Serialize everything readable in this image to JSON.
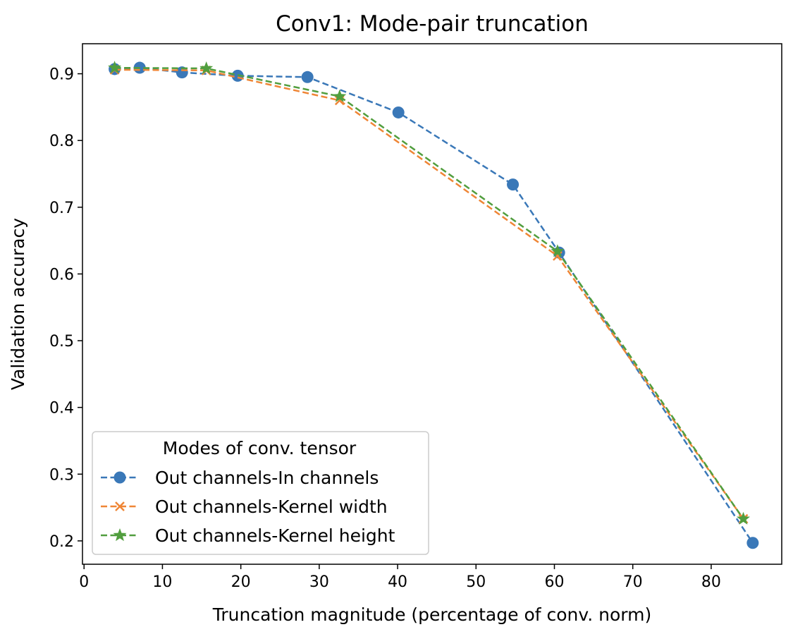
{
  "chart_data": {
    "type": "line",
    "title": "Conv1: Mode-pair truncation",
    "xlabel": "Truncation magnitude (percentage of conv. norm)",
    "ylabel": "Validation accuracy",
    "xlim": [
      -0.2,
      89
    ],
    "ylim": [
      0.165,
      0.945
    ],
    "xticks": [
      0,
      10,
      20,
      30,
      40,
      50,
      60,
      70,
      80
    ],
    "yticks": [
      0.2,
      0.3,
      0.4,
      0.5,
      0.6,
      0.7,
      0.8,
      0.9
    ],
    "legend": {
      "title": "Modes of conv. tensor",
      "position": "lower-left"
    },
    "series": [
      {
        "name": "Out channels-In channels",
        "color": "#3a78b8",
        "marker": "circle",
        "linestyle": "dashed",
        "x": [
          3.9,
          7.1,
          12.5,
          19.6,
          28.5,
          40.1,
          54.7,
          60.6,
          85.3
        ],
        "y": [
          0.907,
          0.909,
          0.902,
          0.897,
          0.895,
          0.842,
          0.734,
          0.632,
          0.197
        ]
      },
      {
        "name": "Out channels-Kernel width",
        "color": "#ef8636",
        "marker": "x",
        "linestyle": "dashed",
        "x": [
          3.9,
          15.6,
          32.6,
          60.4,
          84.1
        ],
        "y": [
          0.906,
          0.905,
          0.86,
          0.627,
          0.233
        ]
      },
      {
        "name": "Out channels-Kernel height",
        "color": "#519e3e",
        "marker": "star",
        "linestyle": "dashed",
        "x": [
          3.9,
          15.6,
          32.6,
          60.4,
          84.1
        ],
        "y": [
          0.909,
          0.908,
          0.866,
          0.634,
          0.233
        ]
      }
    ]
  }
}
